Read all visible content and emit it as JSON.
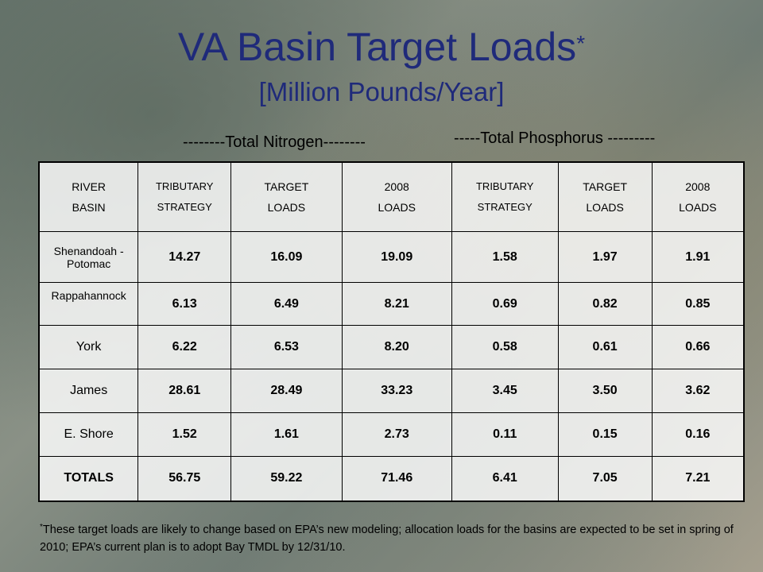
{
  "title": "VA Basin Target Loads",
  "title_marker": "*",
  "subtitle": "[Million Pounds/Year]",
  "nitrogen_label": "--------Total Nitrogen--------",
  "phosphorus_label": "-----Total Phosphorus ---------",
  "table": {
    "headers": [
      [
        "RIVER",
        "BASIN"
      ],
      [
        "TRIBUTARY",
        "STRATEGY"
      ],
      [
        "TARGET",
        "LOADS"
      ],
      [
        "2008",
        "LOADS"
      ],
      [
        "TRIBUTARY",
        "STRATEGY"
      ],
      [
        "TARGET",
        "LOADS"
      ],
      [
        "2008",
        "LOADS"
      ]
    ],
    "rows": [
      {
        "basin": "Shenandoah - Potomac",
        "values": [
          "14.27",
          "16.09",
          "19.09",
          "1.58",
          "1.97",
          "1.91"
        ]
      },
      {
        "basin": "Rappahannock",
        "values": [
          "6.13",
          "6.49",
          "8.21",
          "0.69",
          "0.82",
          "0.85"
        ]
      },
      {
        "basin": "York",
        "values": [
          "6.22",
          "6.53",
          "8.20",
          "0.58",
          "0.61",
          "0.66"
        ]
      },
      {
        "basin": "James",
        "values": [
          "28.61",
          "28.49",
          "33.23",
          "3.45",
          "3.50",
          "3.62"
        ]
      },
      {
        "basin": "E. Shore",
        "values": [
          "1.52",
          "1.61",
          "2.73",
          "0.11",
          "0.15",
          "0.16"
        ]
      },
      {
        "basin": "TOTALS",
        "values": [
          "56.75",
          "59.22",
          "71.46",
          "6.41",
          "7.05",
          "7.21"
        ]
      }
    ]
  },
  "footnote_marker": "*",
  "footnote": "These target loads are likely to change based on EPA’s new modeling; allocation loads for the basins are expected to be set in spring of 2010; EPA’s current plan is to adopt Bay TMDL by 12/31/10."
}
